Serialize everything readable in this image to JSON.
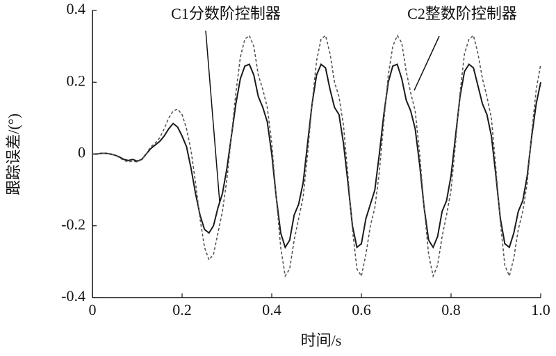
{
  "chart_data": {
    "type": "line",
    "x_label": "时间/s",
    "y_label": "跟踪误差/(°)",
    "annotations": [
      {
        "text": "C1分数阶控制器"
      },
      {
        "text": "C2整数阶控制器"
      }
    ],
    "x": [
      0,
      0.01,
      0.02,
      0.03,
      0.04,
      0.05,
      0.06,
      0.07,
      0.08,
      0.09,
      0.1,
      0.11,
      0.12,
      0.13,
      0.14,
      0.15,
      0.16,
      0.17,
      0.18,
      0.19,
      0.2,
      0.21,
      0.22,
      0.23,
      0.24,
      0.25,
      0.26,
      0.27,
      0.28,
      0.29,
      0.3,
      0.31,
      0.32,
      0.33,
      0.34,
      0.35,
      0.36,
      0.37,
      0.38,
      0.39,
      0.4,
      0.41,
      0.42,
      0.43,
      0.44,
      0.45,
      0.46,
      0.47,
      0.48,
      0.49,
      0.5,
      0.51,
      0.52,
      0.53,
      0.54,
      0.55,
      0.56,
      0.57,
      0.58,
      0.59,
      0.6,
      0.61,
      0.62,
      0.63,
      0.64,
      0.65,
      0.66,
      0.67,
      0.68,
      0.69,
      0.7,
      0.71,
      0.72,
      0.73,
      0.74,
      0.75,
      0.76,
      0.77,
      0.78,
      0.79,
      0.8,
      0.81,
      0.82,
      0.83,
      0.84,
      0.85,
      0.86,
      0.87,
      0.88,
      0.89,
      0.9,
      0.91,
      0.92,
      0.93,
      0.94,
      0.95,
      0.96,
      0.97,
      0.98,
      0.99,
      1
    ],
    "series": [
      {
        "color": "#1a1a1a",
        "style": "solid",
        "values": [
          0,
          0,
          0.002,
          0.002,
          0,
          -0.003,
          -0.008,
          -0.015,
          -0.018,
          -0.015,
          -0.02,
          -0.015,
          0,
          0.015,
          0.025,
          0.035,
          0.05,
          0.07,
          0.085,
          0.075,
          0.05,
          0.02,
          -0.04,
          -0.11,
          -0.17,
          -0.21,
          -0.22,
          -0.2,
          -0.15,
          -0.11,
          -0.04,
          0.05,
          0.14,
          0.21,
          0.245,
          0.25,
          0.22,
          0.16,
          0.13,
          0.09,
          0,
          -0.12,
          -0.22,
          -0.26,
          -0.24,
          -0.17,
          -0.14,
          -0.08,
          0.03,
          0.14,
          0.22,
          0.25,
          0.24,
          0.18,
          0.13,
          0.11,
          0.03,
          -0.08,
          -0.2,
          -0.26,
          -0.25,
          -0.18,
          -0.14,
          -0.1,
          0,
          0.11,
          0.2,
          0.245,
          0.25,
          0.21,
          0.15,
          0.12,
          0.07,
          -0.03,
          -0.15,
          -0.24,
          -0.26,
          -0.23,
          -0.16,
          -0.13,
          -0.06,
          0.05,
          0.16,
          0.23,
          0.25,
          0.24,
          0.19,
          0.14,
          0.11,
          0.05,
          -0.06,
          -0.18,
          -0.25,
          -0.26,
          -0.22,
          -0.16,
          -0.13,
          -0.06,
          0.05,
          0.14,
          0.2
        ]
      },
      {
        "color": "#555555",
        "style": "dashed",
        "values": [
          0,
          0,
          0.002,
          0.002,
          0,
          -0.003,
          -0.01,
          -0.018,
          -0.022,
          -0.02,
          -0.022,
          -0.015,
          0,
          0.02,
          0.03,
          0.045,
          0.07,
          0.1,
          0.12,
          0.125,
          0.11,
          0.07,
          0.01,
          -0.08,
          -0.18,
          -0.26,
          -0.295,
          -0.28,
          -0.22,
          -0.16,
          -0.07,
          0.05,
          0.17,
          0.27,
          0.32,
          0.33,
          0.3,
          0.22,
          0.18,
          0.13,
          0.03,
          -0.12,
          -0.26,
          -0.34,
          -0.32,
          -0.24,
          -0.18,
          -0.12,
          0,
          0.14,
          0.26,
          0.32,
          0.33,
          0.28,
          0.2,
          0.16,
          0.08,
          -0.06,
          -0.21,
          -0.32,
          -0.34,
          -0.28,
          -0.2,
          -0.15,
          -0.05,
          0.09,
          0.22,
          0.3,
          0.33,
          0.31,
          0.23,
          0.17,
          0.12,
          0,
          -0.15,
          -0.28,
          -0.34,
          -0.31,
          -0.23,
          -0.17,
          -0.1,
          0.03,
          0.17,
          0.28,
          0.32,
          0.33,
          0.28,
          0.21,
          0.16,
          0.1,
          -0.04,
          -0.19,
          -0.31,
          -0.34,
          -0.29,
          -0.21,
          -0.16,
          -0.08,
          0.06,
          0.18,
          0.25
        ]
      }
    ],
    "xlim": [
      0,
      1
    ],
    "ylim": [
      -0.4,
      0.4
    ],
    "xticks": [
      0,
      0.2,
      0.4,
      0.6,
      0.8,
      {
        "value": 1,
        "label": "1.0"
      }
    ],
    "yticks": [
      -0.4,
      -0.2,
      0,
      0.2,
      0.4
    ]
  }
}
